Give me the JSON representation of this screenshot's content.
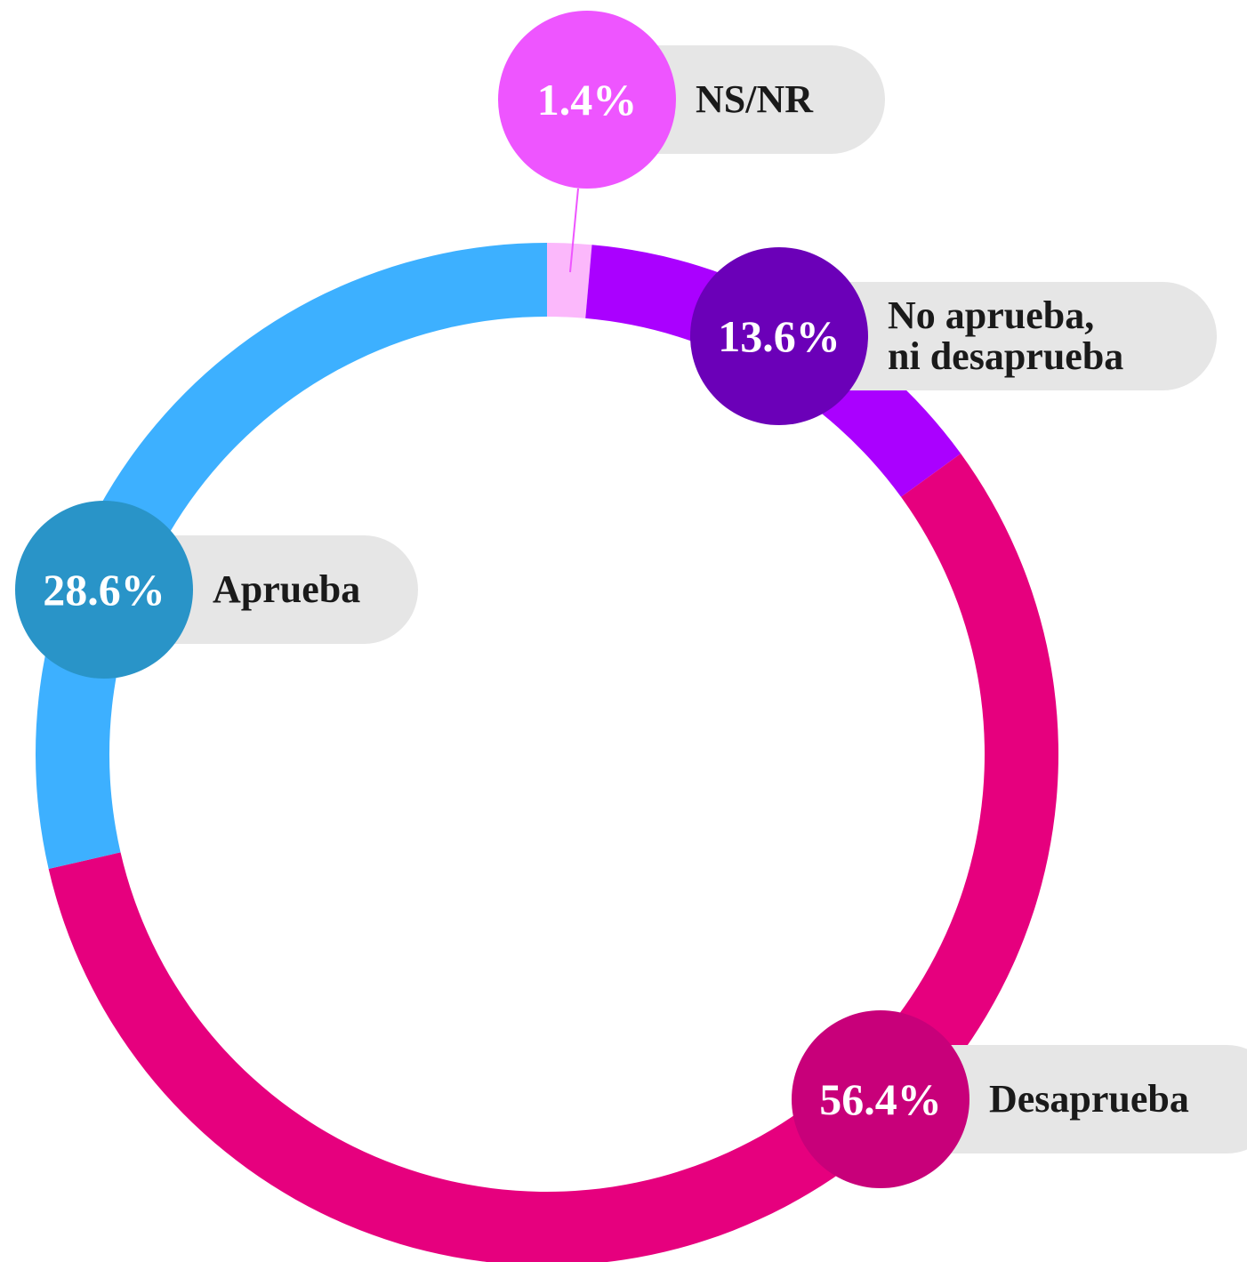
{
  "chart_data": {
    "type": "donut",
    "categories": [
      "NS/NR",
      "No aprueba,\nni desaprueba",
      "Desaprueba",
      "Aprueba"
    ],
    "values": [
      1.4,
      13.6,
      56.4,
      28.6
    ],
    "value_labels": [
      "1.4%",
      "13.6%",
      "56.4%",
      "28.6%"
    ],
    "colors": [
      "#fbb8fb",
      "#aa00ff",
      "#e6007e",
      "#3db0ff"
    ],
    "label_colors": [
      "#ee55ff",
      "#6b00b8",
      "#c8007a",
      "#2994c8"
    ]
  }
}
